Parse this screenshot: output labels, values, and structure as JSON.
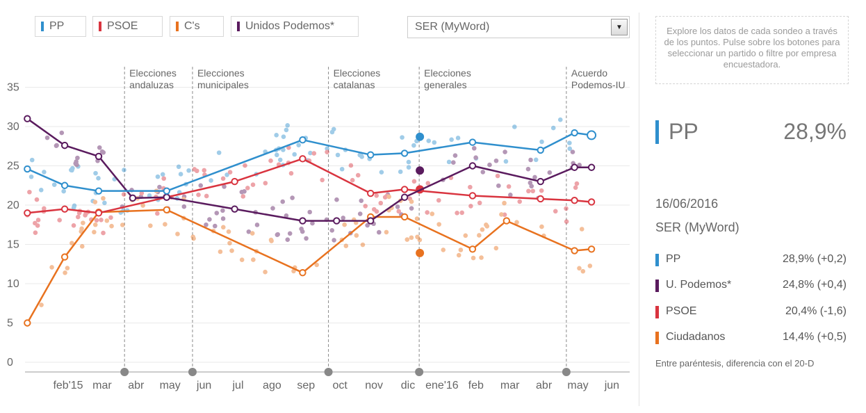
{
  "filters": {
    "parties": [
      {
        "label": "PP",
        "color": "#2f8fcd"
      },
      {
        "label": "PSOE",
        "color": "#d9343f"
      },
      {
        "label": "C's",
        "color": "#e8721f"
      },
      {
        "label": "Unidos Podemos*",
        "color": "#5a1b5e"
      }
    ],
    "pollster_selected": "SER (MyWord)"
  },
  "panel": {
    "hint": "Explore los datos de cada sondeo a través de los puntos. Pulse sobre los botones para seleccionar un partido o filtre por empresa encuestadora.",
    "selected_party": "PP",
    "selected_value": "28,9%",
    "date": "16/06/2016",
    "pollster": "SER (MyWord)",
    "rows": [
      {
        "label": "PP",
        "value": "28,9% (+0,2)",
        "color": "#2f8fcd"
      },
      {
        "label": "U. Podemos*",
        "value": "24,8% (+0,4)",
        "color": "#5a1b5e"
      },
      {
        "label": "PSOE",
        "value": "20,4% (-1,6)",
        "color": "#d9343f"
      },
      {
        "label": "Ciudadanos",
        "value": "14,4% (+0,5)",
        "color": "#e8721f"
      }
    ],
    "footnote": "Entre paréntesis, diferencia con el 20-D"
  },
  "chart_data": {
    "type": "line",
    "y_ticks": [
      0,
      5,
      10,
      15,
      20,
      25,
      30,
      35
    ],
    "ylim": [
      0,
      36
    ],
    "x_range": [
      1.5,
      18.8
    ],
    "x_ticks": [
      {
        "label": "feb'15",
        "x": 3
      },
      {
        "label": "mar",
        "x": 4
      },
      {
        "label": "abr",
        "x": 5
      },
      {
        "label": "may",
        "x": 6
      },
      {
        "label": "jun",
        "x": 7
      },
      {
        "label": "jul",
        "x": 8
      },
      {
        "label": "ago",
        "x": 9
      },
      {
        "label": "sep",
        "x": 10
      },
      {
        "label": "oct",
        "x": 11
      },
      {
        "label": "nov",
        "x": 12
      },
      {
        "label": "dic",
        "x": 13
      },
      {
        "label": "ene'16",
        "x": 14
      },
      {
        "label": "feb",
        "x": 15
      },
      {
        "label": "mar",
        "x": 16
      },
      {
        "label": "abr",
        "x": 17
      },
      {
        "label": "may",
        "x": 18
      },
      {
        "label": "jun",
        "x": 19
      }
    ],
    "events": [
      {
        "label1": "Elecciones",
        "label2": "andaluzas",
        "x": 4.66
      },
      {
        "label1": "Elecciones",
        "label2": "municipales",
        "x": 6.66
      },
      {
        "label1": "Elecciones",
        "label2": "catalanas",
        "x": 10.66
      },
      {
        "label1": "Elecciones",
        "label2": "generales",
        "x": 13.33
      },
      {
        "label1": "Acuerdo",
        "label2": "Podemos-IU",
        "x": 17.66
      }
    ],
    "series": [
      {
        "name": "PP",
        "color": "#2f8fcd",
        "x": [
          1.8,
          2.9,
          3.9,
          5.9,
          9.9,
          11.9,
          12.9,
          14.9,
          16.9,
          17.9,
          18.4
        ],
        "y": [
          24.6,
          22.5,
          21.8,
          21.8,
          28.3,
          26.4,
          26.6,
          28.0,
          27.0,
          29.2,
          28.9
        ],
        "election": {
          "x": 13.35,
          "y": 28.7
        }
      },
      {
        "name": "U. Podemos*",
        "color": "#5a1b5e",
        "x": [
          1.8,
          2.9,
          3.9,
          4.9,
          5.9,
          7.9,
          9.9,
          10.9,
          11.9,
          12.9,
          14.9,
          16.9,
          17.9,
          18.4
        ],
        "y": [
          31.0,
          27.6,
          26.2,
          20.9,
          21.0,
          19.5,
          18.0,
          18.0,
          18.0,
          21.0,
          25.0,
          23.0,
          24.8,
          24.8
        ],
        "election": {
          "x": 13.35,
          "y": 24.4
        }
      },
      {
        "name": "PSOE",
        "color": "#d9343f",
        "x": [
          1.8,
          2.9,
          3.9,
          5.9,
          7.9,
          9.9,
          11.9,
          12.9,
          14.9,
          16.9,
          17.9,
          18.4
        ],
        "y": [
          19.0,
          19.5,
          19.0,
          21.0,
          23.0,
          25.9,
          21.5,
          22.0,
          21.2,
          20.8,
          20.6,
          20.4
        ],
        "election": {
          "x": 13.35,
          "y": 22.0
        }
      },
      {
        "name": "Ciudadanos",
        "color": "#e8721f",
        "x": [
          1.8,
          2.9,
          3.9,
          5.9,
          9.9,
          11.9,
          12.9,
          14.9,
          15.9,
          17.9,
          18.4
        ],
        "y": [
          5.0,
          13.4,
          19.1,
          19.4,
          11.4,
          18.5,
          18.5,
          14.4,
          18.0,
          14.2,
          14.4
        ],
        "election": {
          "x": 13.35,
          "y": 13.9
        }
      }
    ]
  }
}
